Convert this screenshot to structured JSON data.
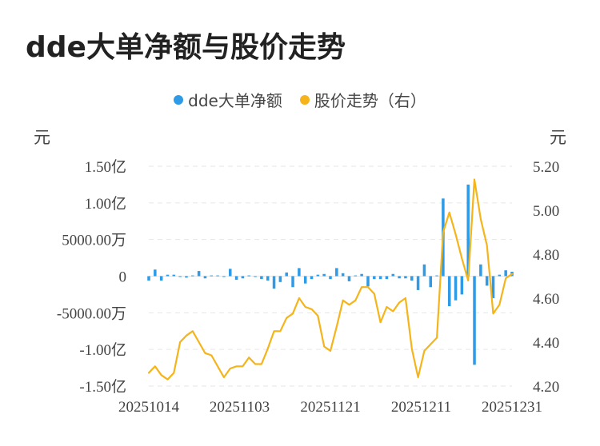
{
  "title": "dde大单净额与股价走势",
  "legend": {
    "items": [
      {
        "label": "dde大单净额",
        "color": "#2f9be6"
      },
      {
        "label": "股价走势（右）",
        "color": "#f4b41a"
      }
    ]
  },
  "axis_units": {
    "left": "元",
    "right": "元"
  },
  "chart_data": {
    "type": "bar",
    "title": "dde大单净额与股价走势",
    "x_tick_labels": [
      "20251014",
      "20251103",
      "20251121",
      "20251211",
      "20251231"
    ],
    "left_axis": {
      "unit": "元",
      "tick_labels": [
        "1.50亿",
        "1.00亿",
        "5000.00万",
        "0",
        "-5000.00万",
        "-1.00亿",
        "-1.50亿"
      ],
      "tick_values": [
        150000000,
        100000000,
        50000000,
        0,
        -50000000,
        -100000000,
        -150000000
      ],
      "ylim": [
        -150000000,
        150000000
      ]
    },
    "right_axis": {
      "unit": "元",
      "tick_labels": [
        "5.20",
        "5.00",
        "4.80",
        "4.60",
        "4.40",
        "4.20"
      ],
      "tick_values": [
        5.2,
        5.0,
        4.8,
        4.6,
        4.4,
        4.2
      ],
      "ylim": [
        4.2,
        5.2
      ]
    },
    "grid": true,
    "series": [
      {
        "name": "dde大单净额",
        "type": "bar",
        "color": "#2f9be6",
        "axis": "left",
        "values": [
          -6000000,
          9000000,
          -6000000,
          2000000,
          2000000,
          -1000000,
          -2000000,
          1000000,
          7000000,
          -3000000,
          1000000,
          1000000,
          0,
          10000000,
          -5000000,
          -3000000,
          1000000,
          -1000000,
          -4000000,
          -6000000,
          -17000000,
          -8000000,
          5000000,
          -15000000,
          11000000,
          -10000000,
          -4000000,
          2000000,
          3000000,
          -4000000,
          11000000,
          4000000,
          -7000000,
          1000000,
          3000000,
          -14000000,
          -4000000,
          -4000000,
          -4000000,
          3000000,
          -3000000,
          -3000000,
          -6000000,
          -19000000,
          16000000,
          -15000000,
          1000000,
          106000000,
          -41000000,
          -33000000,
          -25000000,
          125000000,
          -121000000,
          16000000,
          -13000000,
          -30000000,
          2000000,
          8000000,
          6000000
        ]
      },
      {
        "name": "股价走势（右）",
        "type": "line",
        "color": "#f4b41a",
        "axis": "right",
        "values": [
          4.26,
          4.29,
          4.25,
          4.23,
          4.26,
          4.4,
          4.43,
          4.45,
          4.4,
          4.35,
          4.34,
          4.29,
          4.24,
          4.28,
          4.29,
          4.29,
          4.33,
          4.3,
          4.3,
          4.37,
          4.45,
          4.45,
          4.51,
          4.53,
          4.6,
          4.56,
          4.55,
          4.52,
          4.38,
          4.36,
          4.47,
          4.59,
          4.57,
          4.59,
          4.65,
          4.65,
          4.62,
          4.49,
          4.56,
          4.54,
          4.58,
          4.6,
          4.37,
          4.24,
          4.36,
          4.39,
          4.42,
          4.9,
          4.99,
          4.89,
          4.78,
          4.68,
          5.14,
          4.96,
          4.84,
          4.53,
          4.57,
          4.69,
          4.71
        ]
      }
    ]
  }
}
